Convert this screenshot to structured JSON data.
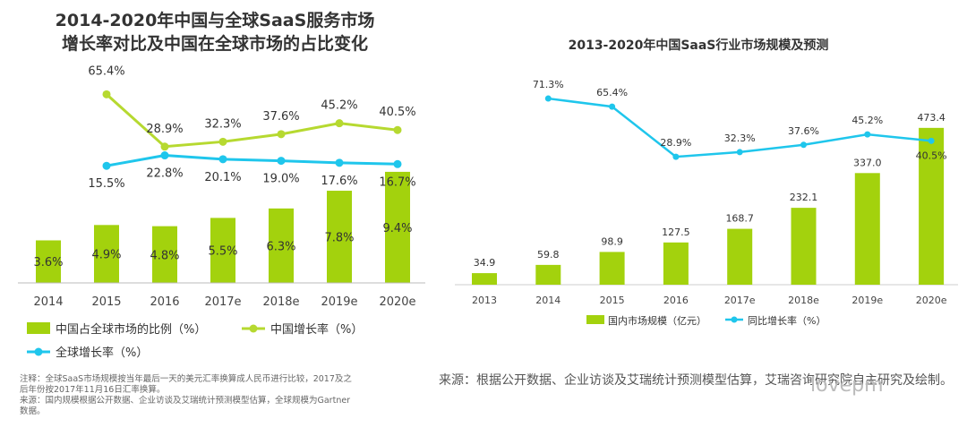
{
  "chart_data": [
    {
      "type": "bar",
      "title": "2014-2020年中国与全球SaaS服务市场增长率对比及中国在全球市场的占比变化",
      "title_lines": [
        "2014-2020年中国与全球SaaS服务市场",
        "增长率对比及中国在全球市场的占比变化"
      ],
      "categories": [
        "2014",
        "2015",
        "2016",
        "2017e",
        "2018e",
        "2019e",
        "2020e"
      ],
      "series": [
        {
          "name": "中国占全球市场的比例（%）",
          "type": "bar",
          "color": "#a3d20d",
          "values": [
            3.6,
            4.9,
            4.8,
            5.5,
            6.3,
            7.8,
            9.4
          ],
          "labels": [
            "3.6%",
            "4.9%",
            "4.8%",
            "5.5%",
            "6.3%",
            "7.8%",
            "9.4%"
          ]
        },
        {
          "name": "中国增长率（%）",
          "type": "line",
          "color": "#b6d930",
          "values": [
            null,
            65.4,
            28.9,
            32.3,
            37.6,
            45.2,
            40.5
          ],
          "labels": [
            "",
            "65.4%",
            "28.9%",
            "32.3%",
            "37.6%",
            "45.2%",
            "40.5%"
          ]
        },
        {
          "name": "全球增长率（%）",
          "type": "line",
          "color": "#1fc6ec",
          "values": [
            null,
            15.5,
            22.8,
            20.1,
            19.0,
            17.6,
            16.7
          ],
          "labels": [
            "",
            "15.5%",
            "22.8%",
            "20.1%",
            "19.0%",
            "17.6%",
            "16.7%"
          ]
        }
      ],
      "legend": "bottom",
      "note_lines": [
        "注释：全球SaaS市场规模按当年最后一天的美元汇率换算成人民币进行比较，2017及之",
        "后年份按2017年11月16日汇率换算。",
        "来源：国内规模根据公开数据、企业访谈及艾瑞统计预测模型估算，全球规模为Gartner",
        "数据。"
      ]
    },
    {
      "type": "bar",
      "title": "2013-2020年中国SaaS行业市场规模及预测",
      "categories": [
        "2013",
        "2014",
        "2015",
        "2016",
        "2017e",
        "2018e",
        "2019e",
        "2020e"
      ],
      "series": [
        {
          "name": "国内市场规模（亿元）",
          "type": "bar",
          "color": "#a3d20d",
          "values": [
            34.9,
            59.8,
            98.9,
            127.5,
            168.7,
            232.1,
            337.0,
            473.4
          ],
          "labels": [
            "34.9",
            "59.8",
            "98.9",
            "127.5",
            "168.7",
            "232.1",
            "337.0",
            "473.4"
          ]
        },
        {
          "name": "同比增长率（%）",
          "type": "line",
          "color": "#1fc6ec",
          "values": [
            null,
            71.3,
            65.4,
            28.9,
            32.3,
            37.6,
            45.2,
            40.5
          ],
          "labels": [
            "",
            "71.3%",
            "65.4%",
            "28.9%",
            "32.3%",
            "37.6%",
            "45.2%",
            "40.5%"
          ]
        }
      ],
      "legend": "bottom",
      "source": "来源：根据公开数据、企业访谈及艾瑞统计预测模型估算，艾瑞咨询研究院自主研究及绘制。"
    }
  ],
  "watermark": "lovepm"
}
